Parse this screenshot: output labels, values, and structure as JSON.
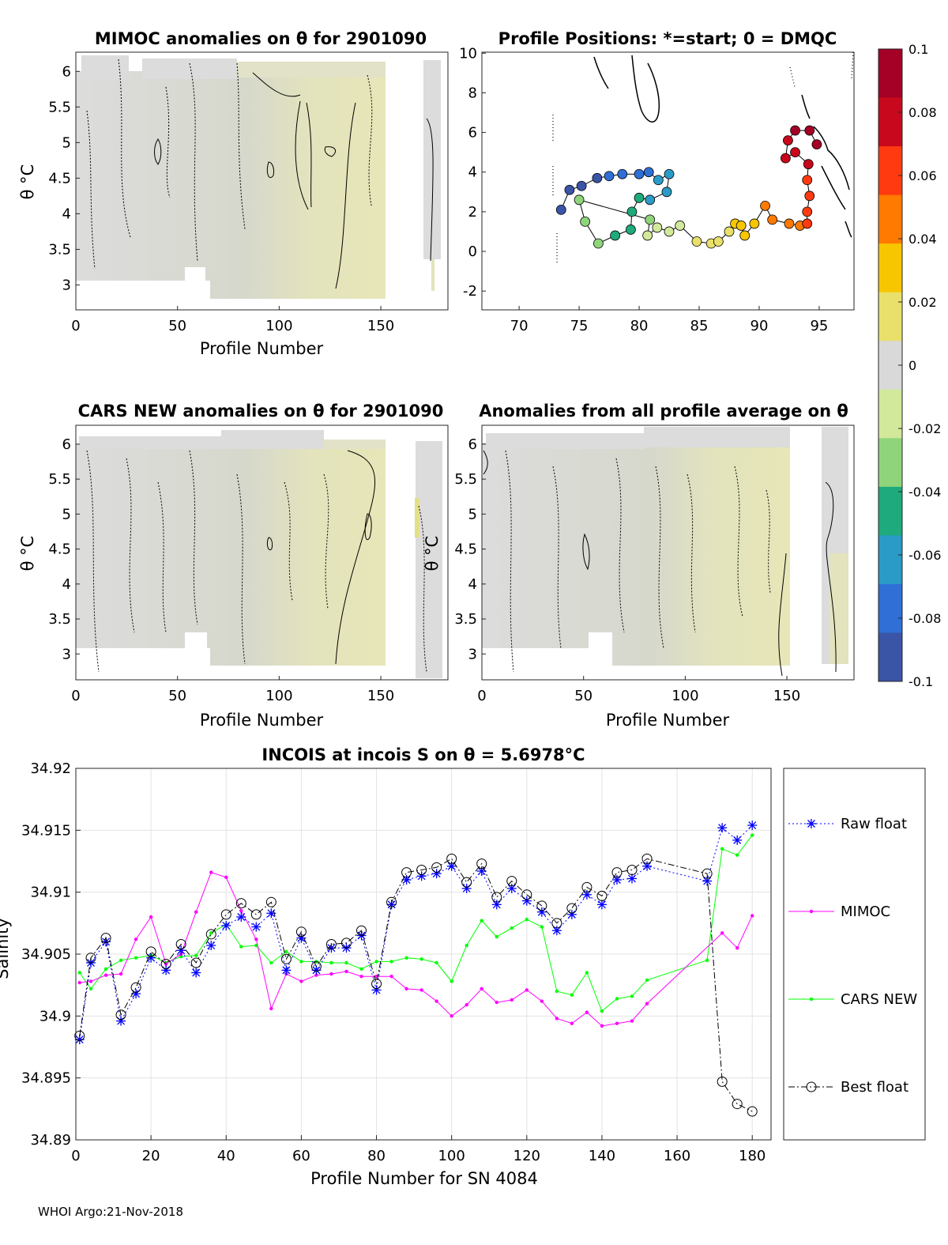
{
  "footer": "WHOI Argo:21-Nov-2018",
  "colorbar": {
    "ticks": [
      "0.1",
      "0.08",
      "0.06",
      "0.04",
      "0.02",
      "0",
      "-0.02",
      "-0.04",
      "-0.06",
      "-0.08",
      "-0.1"
    ],
    "colors": [
      "#a50026",
      "#c8081c",
      "#ff3a10",
      "#ff7a00",
      "#f7c600",
      "#e8e06a",
      "#d9d9d9",
      "#d2e89a",
      "#8fd47a",
      "#1eaa7d",
      "#2a9bc6",
      "#2f6fd6",
      "#3a54a6"
    ]
  },
  "panels": {
    "mimoc": {
      "title": "MIMOC anomalies on θ  for 2901090",
      "xlabel": "Profile Number",
      "ylabel": "θ °C",
      "xticks": [
        "0",
        "50",
        "100",
        "150"
      ],
      "yticks": [
        "6",
        "5.5",
        "5",
        "4.5",
        "4",
        "3.5",
        "3"
      ]
    },
    "positions": {
      "title": "Profile Positions: *=start; 0 = DMQC",
      "xticks": [
        "70",
        "75",
        "80",
        "85",
        "90",
        "95"
      ],
      "yticks": [
        "10",
        "8",
        "6",
        "4",
        "2",
        "0",
        "-2"
      ]
    },
    "cars": {
      "title": "CARS NEW anomalies on θ for 2901090",
      "xlabel": "Profile Number",
      "ylabel": "θ °C",
      "xticks": [
        "0",
        "50",
        "100",
        "150"
      ],
      "yticks": [
        "6",
        "5.5",
        "5",
        "4.5",
        "4",
        "3.5",
        "3"
      ]
    },
    "avg": {
      "title": "Anomalies from all profile average on θ",
      "xlabel": "Profile Number",
      "ylabel": "θ °C",
      "xticks": [
        "0",
        "50",
        "100",
        "150"
      ],
      "yticks": [
        "6",
        "5.5",
        "5",
        "4.5",
        "4",
        "3.5",
        "3"
      ]
    }
  },
  "chart_data": {
    "type": "line",
    "title": "INCOIS at incois S on θ = 5.6978°C",
    "xlabel": "Profile Number for SN 4084",
    "ylabel": "Salinity",
    "xlim": [
      0,
      185
    ],
    "ylim": [
      34.89,
      34.92
    ],
    "xticks": [
      "0",
      "20",
      "40",
      "60",
      "80",
      "100",
      "120",
      "140",
      "160",
      "180"
    ],
    "yticks": [
      "34.92",
      "34.915",
      "34.91",
      "34.905",
      "34.9",
      "34.895",
      "34.89"
    ],
    "series": [
      {
        "name": "Raw float",
        "color": "#0000ff",
        "x": [
          1,
          4,
          8,
          12,
          16,
          20,
          24,
          28,
          32,
          36,
          40,
          44,
          48,
          52,
          56,
          60,
          64,
          68,
          72,
          76,
          80,
          84,
          88,
          92,
          96,
          100,
          104,
          108,
          112,
          116,
          120,
          124,
          128,
          132,
          136,
          140,
          144,
          148,
          152,
          168,
          172,
          176,
          180
        ],
        "y": [
          34.8981,
          34.9043,
          34.906,
          34.8996,
          34.9018,
          34.9047,
          34.9037,
          34.9053,
          34.9035,
          34.9057,
          34.9073,
          34.908,
          34.9072,
          34.9083,
          34.9037,
          34.9063,
          34.9037,
          34.9055,
          34.9055,
          34.9065,
          34.9021,
          34.909,
          34.911,
          34.9113,
          34.9115,
          34.9121,
          34.9103,
          34.9117,
          34.909,
          34.9103,
          34.9093,
          34.9084,
          34.9069,
          34.9082,
          34.9098,
          34.909,
          34.911,
          34.9111,
          34.9121,
          34.9109,
          34.9152,
          34.9142,
          34.9154
        ]
      },
      {
        "name": "MIMOC",
        "color": "#ff00ff",
        "x": [
          1,
          4,
          8,
          12,
          16,
          20,
          24,
          28,
          32,
          36,
          40,
          44,
          48,
          52,
          56,
          60,
          64,
          68,
          72,
          76,
          80,
          84,
          88,
          92,
          96,
          100,
          104,
          108,
          112,
          116,
          120,
          124,
          128,
          132,
          136,
          140,
          144,
          148,
          152,
          172,
          176,
          180
        ],
        "y": [
          34.9027,
          34.9028,
          34.9033,
          34.9034,
          34.9062,
          34.908,
          34.9042,
          34.905,
          34.9084,
          34.9116,
          34.9112,
          34.9085,
          34.9062,
          34.9006,
          34.9034,
          34.9028,
          34.9033,
          34.9034,
          34.9036,
          34.9032,
          34.9032,
          34.9032,
          34.9022,
          34.9021,
          34.9012,
          34.9,
          34.9009,
          34.9022,
          34.9011,
          34.9013,
          34.9021,
          34.9012,
          34.8998,
          34.8994,
          34.9003,
          34.8992,
          34.8994,
          34.8996,
          34.901,
          34.9067,
          34.9055,
          34.9081
        ]
      },
      {
        "name": "CARS NEW",
        "color": "#00ff00",
        "x": [
          1,
          4,
          8,
          12,
          16,
          20,
          24,
          28,
          32,
          36,
          40,
          44,
          48,
          52,
          56,
          60,
          64,
          68,
          72,
          76,
          80,
          84,
          88,
          92,
          96,
          100,
          104,
          108,
          112,
          116,
          120,
          124,
          128,
          132,
          136,
          140,
          144,
          148,
          152,
          168,
          172,
          176,
          180
        ],
        "y": [
          34.9035,
          34.9022,
          34.9038,
          34.9045,
          34.9047,
          34.9049,
          34.9043,
          34.9048,
          34.9049,
          34.9067,
          34.9074,
          34.9056,
          34.9057,
          34.9043,
          34.9052,
          34.9044,
          34.9044,
          34.9043,
          34.9043,
          34.9038,
          34.9044,
          34.9044,
          34.9047,
          34.9046,
          34.9043,
          34.9028,
          34.9057,
          34.9077,
          34.9064,
          34.9071,
          34.9078,
          34.9072,
          34.902,
          34.9017,
          34.9035,
          34.9004,
          34.9014,
          34.9016,
          34.9029,
          34.9045,
          34.9135,
          34.913,
          34.9146
        ]
      },
      {
        "name": "Best float",
        "color": "#000000",
        "x": [
          1,
          4,
          8,
          12,
          16,
          20,
          24,
          28,
          32,
          36,
          40,
          44,
          48,
          52,
          56,
          60,
          64,
          68,
          72,
          76,
          80,
          84,
          88,
          92,
          96,
          100,
          104,
          108,
          112,
          116,
          120,
          124,
          128,
          132,
          136,
          140,
          144,
          148,
          152,
          168,
          172,
          176,
          180
        ],
        "y": [
          34.8984,
          34.9047,
          34.9063,
          34.9001,
          34.9023,
          34.9052,
          34.9042,
          34.9058,
          34.9043,
          34.9066,
          34.9082,
          34.9091,
          34.9082,
          34.9092,
          34.9046,
          34.9068,
          34.904,
          34.9058,
          34.9059,
          34.9069,
          34.9026,
          34.9092,
          34.9116,
          34.9118,
          34.912,
          34.9127,
          34.9108,
          34.9123,
          34.9096,
          34.9109,
          34.9098,
          34.9089,
          34.9075,
          34.9087,
          34.9104,
          34.9097,
          34.9116,
          34.9118,
          34.9127,
          34.9115,
          34.8947,
          34.8929,
          34.8923
        ]
      }
    ]
  }
}
